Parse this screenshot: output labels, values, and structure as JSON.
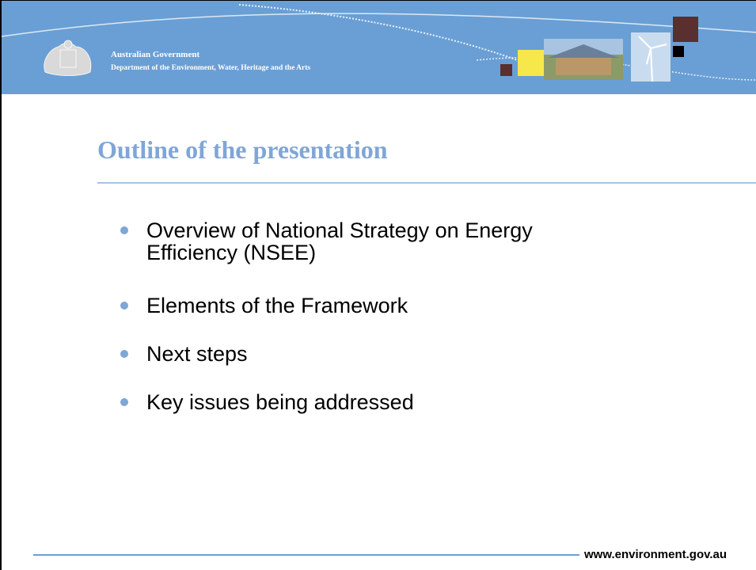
{
  "header": {
    "org": "Australian Government",
    "department": "Department of the Environment, Water, Heritage and the Arts"
  },
  "title": "Outline of the presentation",
  "bullets": [
    "Overview of National Strategy on Energy Efficiency (NSEE)",
    "Elements of the Framework",
    "Next steps",
    "Key issues being addressed"
  ],
  "footer": {
    "url": "www.environment.gov.au"
  }
}
